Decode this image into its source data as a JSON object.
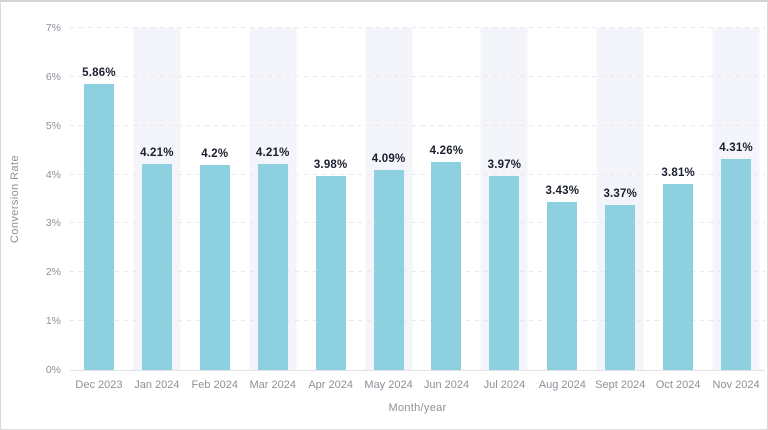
{
  "chart_data": {
    "type": "bar",
    "title": "",
    "xlabel": "Month/year",
    "ylabel": "Conversion Rate",
    "categories": [
      "Dec 2023",
      "Jan 2024",
      "Feb 2024",
      "Mar 2024",
      "Apr 2024",
      "May 2024",
      "Jun 2024",
      "Jul 2024",
      "Aug 2024",
      "Sept 2024",
      "Oct 2024",
      "Nov 2024"
    ],
    "values": [
      5.86,
      4.21,
      4.2,
      4.21,
      3.98,
      4.09,
      4.26,
      3.97,
      3.43,
      3.37,
      3.81,
      4.31
    ],
    "value_labels": [
      "5.86%",
      "4.21%",
      "4.2%",
      "4.21%",
      "3.98%",
      "4.09%",
      "4.26%",
      "3.97%",
      "3.43%",
      "3.37%",
      "3.81%",
      "4.31%"
    ],
    "ylim": [
      0,
      7
    ],
    "ytick_labels": [
      "0%",
      "1%",
      "2%",
      "3%",
      "4%",
      "5%",
      "6%",
      "7%"
    ],
    "grid": "horizontal-dashed",
    "legend": "none",
    "striped_category_indices": [
      1,
      3,
      5,
      7,
      9,
      11
    ],
    "colors": {
      "bar": "#8DD0E0",
      "stripe": "#F4F5FB",
      "gridline": "#E7E7EC",
      "axis_line": "#E2E2E7",
      "tick_label": "#8F909A",
      "axis_title": "#8F909A",
      "value_label": "#1B1F2E",
      "background": "#FFFFFF"
    }
  }
}
